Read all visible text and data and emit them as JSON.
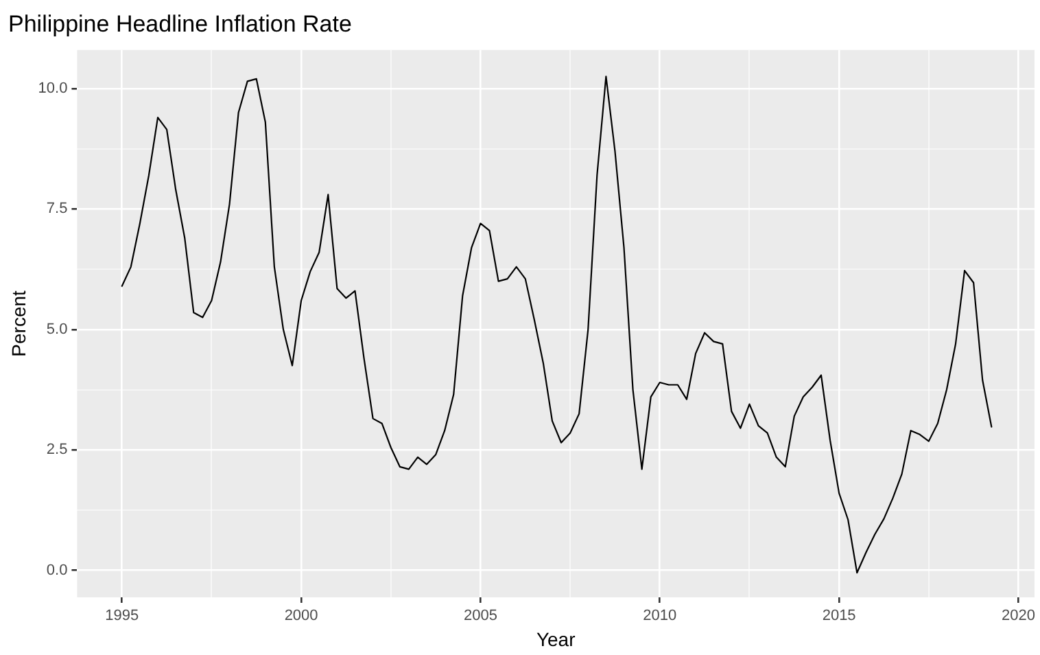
{
  "chart_data": {
    "type": "line",
    "title": "Philippine Headline Inflation Rate",
    "xlabel": "Year",
    "ylabel": "Percent",
    "x": [
      1995,
      1995.25,
      1995.5,
      1995.75,
      1996,
      1996.25,
      1996.5,
      1996.75,
      1997,
      1997.25,
      1997.5,
      1997.75,
      1998,
      1998.25,
      1998.5,
      1998.75,
      1999,
      1999.25,
      1999.5,
      1999.75,
      2000,
      2000.25,
      2000.5,
      2000.75,
      2001,
      2001.25,
      2001.5,
      2001.75,
      2002,
      2002.25,
      2002.5,
      2002.75,
      2003,
      2003.25,
      2003.5,
      2003.75,
      2004,
      2004.25,
      2004.5,
      2004.75,
      2005,
      2005.25,
      2005.5,
      2005.75,
      2006,
      2006.25,
      2006.5,
      2006.75,
      2007,
      2007.25,
      2007.5,
      2007.75,
      2008,
      2008.25,
      2008.5,
      2008.75,
      2009,
      2009.25,
      2009.5,
      2009.75,
      2010,
      2010.25,
      2010.5,
      2010.75,
      2011,
      2011.25,
      2011.5,
      2011.75,
      2012,
      2012.25,
      2012.5,
      2012.75,
      2013,
      2013.25,
      2013.5,
      2013.75,
      2014,
      2014.25,
      2014.5,
      2014.75,
      2015,
      2015.25,
      2015.5,
      2015.75,
      2016,
      2016.25,
      2016.5,
      2016.75,
      2017,
      2017.25,
      2017.5,
      2017.75,
      2018,
      2018.25,
      2018.5,
      2018.75,
      2019,
      2019.25
    ],
    "series": [
      {
        "color": "#000000",
        "values": [
          5.9,
          6.3,
          7.2,
          8.2,
          9.4,
          9.15,
          7.9,
          6.9,
          5.35,
          5.25,
          5.6,
          6.4,
          7.6,
          9.5,
          10.15,
          10.2,
          9.3,
          6.3,
          5.0,
          4.25,
          5.6,
          6.2,
          6.6,
          7.8,
          5.85,
          5.65,
          5.8,
          4.4,
          3.15,
          3.05,
          2.55,
          2.15,
          2.1,
          2.35,
          2.2,
          2.4,
          2.9,
          3.65,
          5.7,
          6.7,
          7.2,
          7.05,
          6.0,
          6.05,
          6.3,
          6.05,
          5.2,
          4.3,
          3.1,
          2.65,
          2.85,
          3.25,
          5.0,
          8.2,
          10.25,
          8.7,
          6.7,
          3.75,
          2.1,
          3.6,
          3.9,
          3.85,
          3.85,
          3.55,
          4.5,
          4.93,
          4.75,
          4.7,
          3.3,
          2.95,
          3.45,
          3.0,
          2.85,
          2.35,
          2.15,
          3.2,
          3.6,
          3.8,
          4.05,
          2.7,
          1.6,
          1.05,
          -0.05,
          0.37,
          0.75,
          1.07,
          1.5,
          2.0,
          2.9,
          2.82,
          2.68,
          3.05,
          3.75,
          4.7,
          6.22,
          5.97,
          3.95,
          2.98
        ]
      }
    ],
    "xlim": [
      1993.75,
      2020.45
    ],
    "xticks": [
      1995,
      {
        "value": 1997.5,
        "label": null
      },
      2000,
      {
        "value": 2002.5,
        "label": null
      },
      2005,
      {
        "value": 2007.5,
        "label": null
      },
      2010,
      {
        "value": 2012.5,
        "label": null
      },
      2015,
      {
        "value": 2017.5,
        "label": null
      },
      2020
    ],
    "ylim": [
      -0.56,
      10.8
    ],
    "yticks": [
      {
        "value": 0,
        "label": "0.0"
      },
      {
        "value": 1.25,
        "label": null
      },
      {
        "value": 2.5,
        "label": "2.5"
      },
      {
        "value": 3.75,
        "label": null
      },
      {
        "value": 5,
        "label": "5.0"
      },
      {
        "value": 6.25,
        "label": null
      },
      {
        "value": 7.5,
        "label": "7.5"
      },
      {
        "value": 8.75,
        "label": null
      },
      {
        "value": 10,
        "label": "10.0"
      }
    ],
    "grid": true,
    "legend": false,
    "marker": "none",
    "line_style": "solid"
  }
}
